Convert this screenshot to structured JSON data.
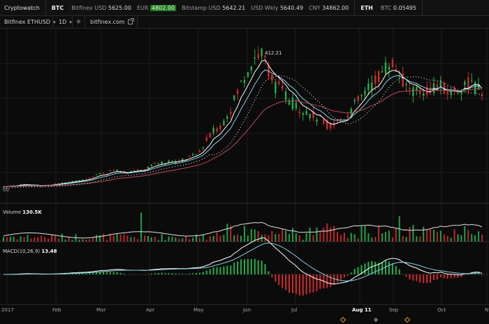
{
  "ticker": {
    "brand": "Cryptowatch",
    "btc_symbol": "BTC",
    "btc_items": [
      {
        "label": "Bitfinex USD",
        "value": "5625.00",
        "highlight": false
      },
      {
        "label": "EUR",
        "value": "4802.00",
        "highlight": true
      },
      {
        "label": "Bitstamp USD",
        "value": "5642.21",
        "highlight": false
      },
      {
        "label": "USD Wkly",
        "value": "5640.49",
        "highlight": false
      },
      {
        "label": "CNY",
        "value": "34862.00",
        "highlight": false
      }
    ],
    "eth_symbol": "ETH",
    "eth_items": [
      {
        "label": "BTC",
        "value": "0.05495",
        "highlight": false
      }
    ]
  },
  "toolbar": {
    "market": "Bitfinex ETHUSD",
    "period": "1D",
    "source": "bitfinex.com"
  },
  "indicators": {
    "volume_label": "Volume",
    "volume_value": "130.5K",
    "macd_label": "MACD(10,26,9)",
    "macd_value": "13.48",
    "peak_label": "412.21",
    "left_price_stub": "00"
  },
  "xaxis": {
    "labels": [
      "2017",
      "Feb",
      "Mar",
      "Apr",
      "May",
      "Jun",
      "Jul",
      "Aug 11",
      "Sep",
      "Oct",
      "N"
    ],
    "highlighted": "Aug 11"
  },
  "colors": {
    "up": "#22b14c",
    "down": "#d42a2a",
    "ema_fast": "#ffffff",
    "ema_mid": "#7fd4e6",
    "ema_slow": "#b84a5a",
    "bg": "#0b0b0b",
    "grid": "#1e1e1e",
    "marker": "#d4a017"
  },
  "chart_data": {
    "type": "candlestick",
    "series": "ETHUSD daily (approx.)",
    "x": [
      "2017-01",
      "2017-02",
      "2017-03",
      "2017-04",
      "2017-05",
      "2017-06",
      "2017-07",
      "2017-08",
      "2017-09",
      "2017-10"
    ],
    "close_path": [
      8,
      9,
      11,
      14,
      16,
      13,
      11,
      10,
      12,
      14,
      18,
      20,
      22,
      24,
      26,
      30,
      37,
      44,
      48,
      49,
      60,
      54,
      50,
      49,
      55,
      57,
      60,
      69,
      77,
      80,
      79,
      87,
      80,
      89,
      95,
      100,
      110,
      140,
      160,
      180,
      190,
      220,
      250,
      290,
      330,
      360,
      390,
      412,
      390,
      350,
      310,
      300,
      280,
      260,
      250,
      240,
      230,
      220,
      210,
      200,
      190,
      200,
      210,
      220,
      240,
      260,
      280,
      300,
      320,
      340,
      360,
      380,
      370,
      340,
      310,
      300,
      290,
      295,
      300,
      305,
      310,
      300,
      290,
      295,
      305,
      315,
      320,
      300,
      295
    ],
    "peak_value": 412.21
  }
}
